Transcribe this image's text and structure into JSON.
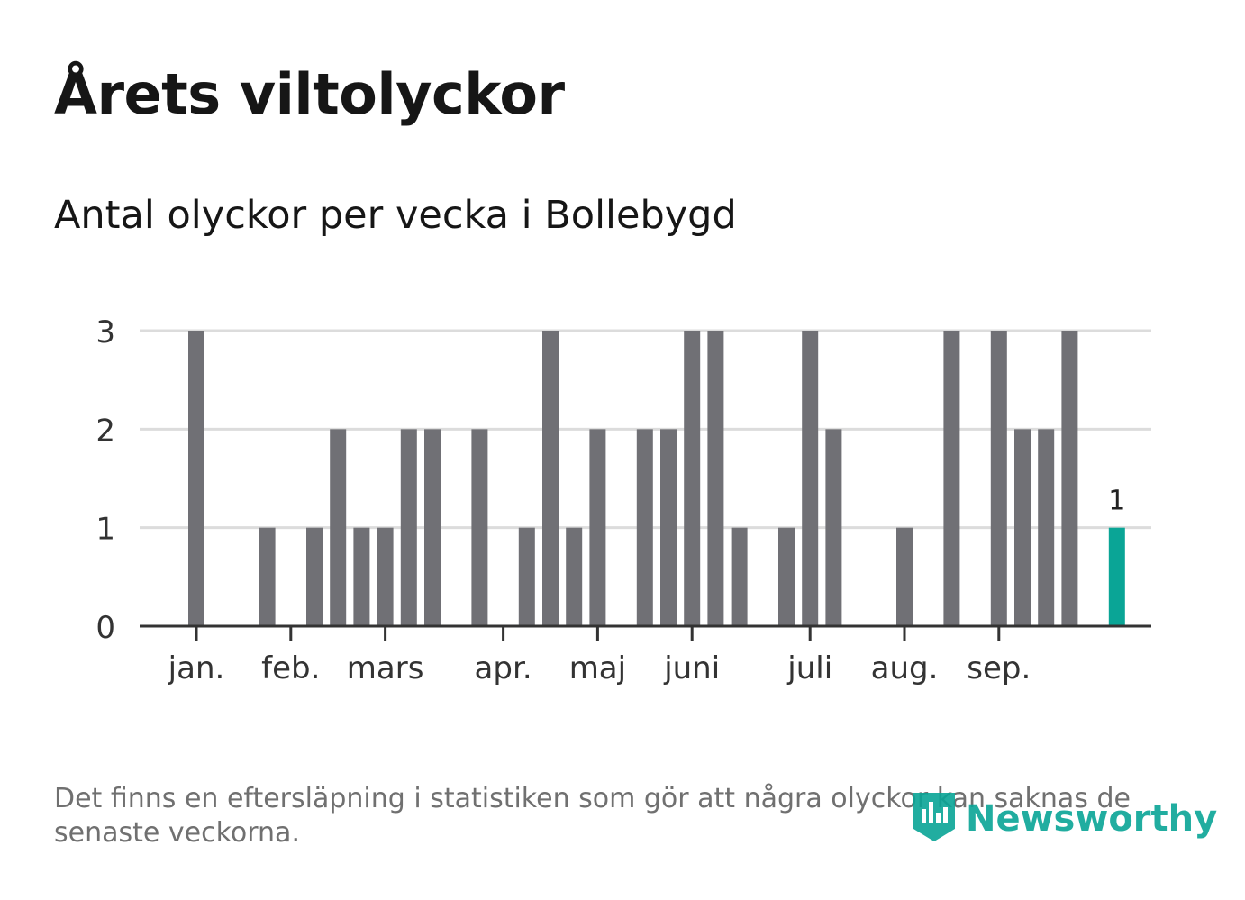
{
  "title": "Årets viltolyckor",
  "subtitle": "Antal olyckor per vecka i Bollebygd",
  "footnote": "Det finns en eftersläpning i statistiken som gör att några olyckor kan saknas de senaste veckorna.",
  "brand": {
    "name": "Newsworthy",
    "icon": "newsworthy-logo-icon"
  },
  "colors": {
    "bar": "#707075",
    "highlight": "#0aa596",
    "grid": "#dcdcdc",
    "axis": "#333333"
  },
  "chart_data": {
    "type": "bar",
    "title": "Antal olyckor per vecka i Bollebygd",
    "xlabel": "",
    "ylabel": "",
    "ylim": [
      0,
      3
    ],
    "yticks": [
      0,
      1,
      2,
      3
    ],
    "weeks": [
      1,
      2,
      3,
      4,
      5,
      6,
      7,
      8,
      9,
      10,
      11,
      12,
      13,
      14,
      15,
      16,
      17,
      18,
      19,
      20,
      21,
      22,
      23,
      24,
      25,
      26,
      27,
      28,
      29,
      30,
      31,
      32,
      33,
      34,
      35,
      36,
      37,
      38,
      39,
      40
    ],
    "values": [
      3,
      0,
      0,
      1,
      0,
      1,
      2,
      1,
      1,
      2,
      2,
      0,
      2,
      0,
      1,
      3,
      1,
      2,
      0,
      2,
      2,
      3,
      3,
      1,
      0,
      1,
      3,
      2,
      0,
      0,
      1,
      0,
      3,
      0,
      3,
      2,
      2,
      3,
      0,
      1
    ],
    "highlight_index": 39,
    "highlight_label": "1",
    "month_ticks": [
      {
        "label": "jan.",
        "week": 1
      },
      {
        "label": "feb.",
        "week": 5
      },
      {
        "label": "mars",
        "week": 9
      },
      {
        "label": "apr.",
        "week": 14
      },
      {
        "label": "maj",
        "week": 18
      },
      {
        "label": "juni",
        "week": 22
      },
      {
        "label": "juli",
        "week": 27
      },
      {
        "label": "aug.",
        "week": 31
      },
      {
        "label": "sep.",
        "week": 35
      }
    ],
    "grid": true
  }
}
